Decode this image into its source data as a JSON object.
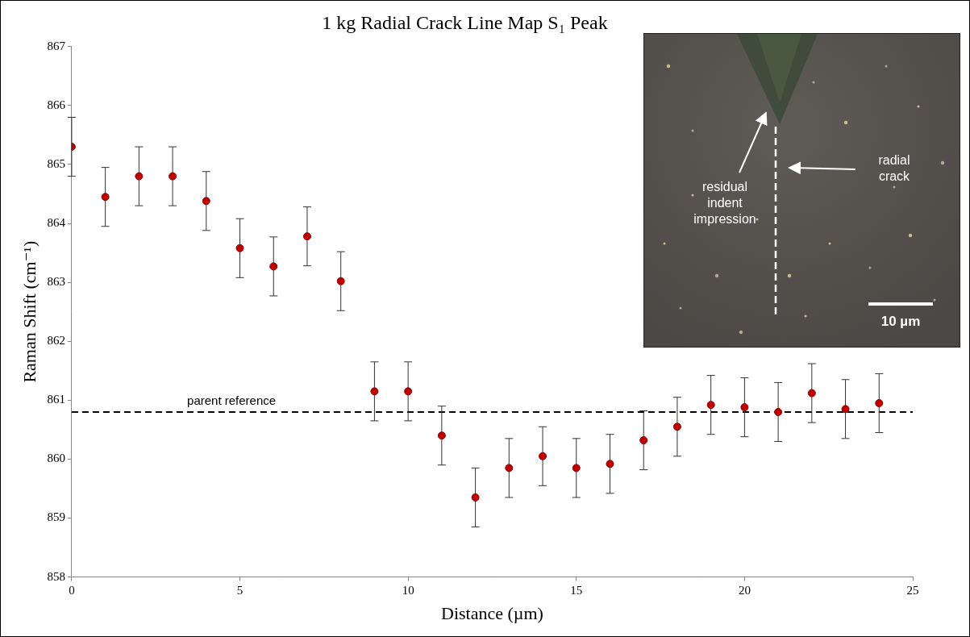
{
  "chart_data": {
    "type": "scatter",
    "title": "1 kg Radial Crack Line Map S₁ Peak",
    "x_label": "Distance (µm)",
    "y_label": "Raman Shift (cm⁻¹)",
    "x": [
      0,
      1,
      2,
      3,
      4,
      5,
      6,
      7,
      8,
      9,
      10,
      11,
      12,
      13,
      14,
      15,
      16,
      17,
      18,
      19,
      20,
      21,
      22,
      23,
      24
    ],
    "values": [
      865.3,
      864.45,
      864.8,
      864.8,
      864.38,
      863.58,
      863.27,
      863.78,
      863.02,
      861.15,
      861.15,
      860.4,
      859.35,
      859.85,
      860.05,
      859.85,
      859.92,
      860.32,
      860.55,
      860.92,
      860.88,
      860.8,
      861.12,
      860.85,
      860.95
    ],
    "errors": [
      0.5,
      0.5,
      0.5,
      0.5,
      0.5,
      0.5,
      0.5,
      0.5,
      0.5,
      0.5,
      0.5,
      0.5,
      0.5,
      0.5,
      0.5,
      0.5,
      0.5,
      0.5,
      0.5,
      0.5,
      0.5,
      0.5,
      0.5,
      0.5,
      0.5
    ],
    "color": "#c00000",
    "marker": "circle",
    "xlim": [
      0,
      25
    ],
    "xticks": [
      0,
      5,
      10,
      15,
      20,
      25
    ],
    "ylim": [
      858,
      867
    ],
    "yticks": [
      858,
      859,
      860,
      861,
      862,
      863,
      864,
      865,
      866,
      867
    ],
    "grid": false,
    "annotations": [
      {
        "text": "parent reference",
        "y": 860.8,
        "line_style": "dashed"
      }
    ],
    "inset": {
      "labels": [
        "residual indent impression",
        "radial crack"
      ],
      "scale_bar": "10 µm"
    }
  }
}
